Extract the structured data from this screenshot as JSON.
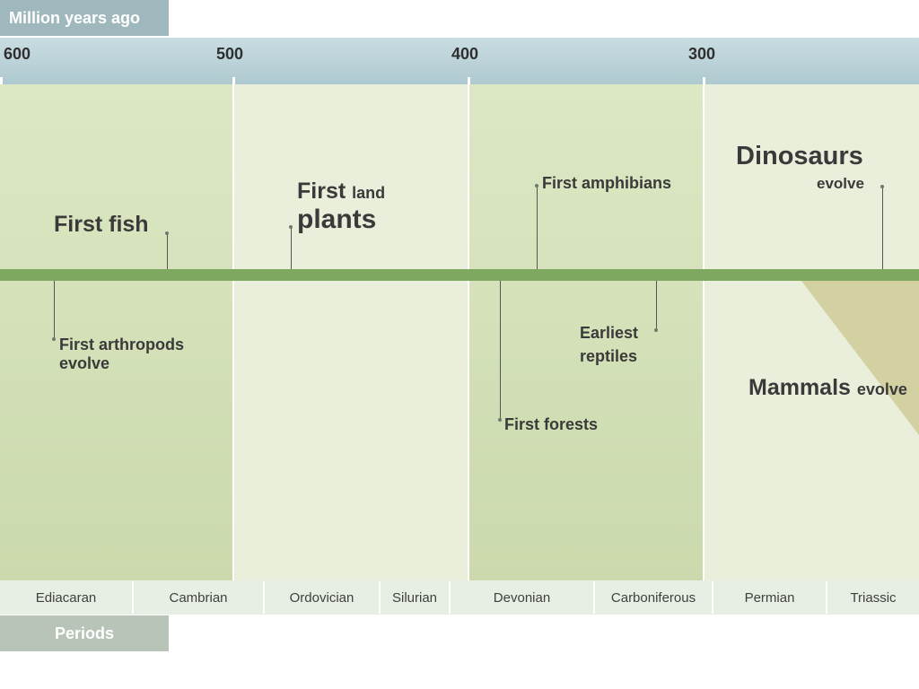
{
  "header": {
    "axis_title": "Million years ago"
  },
  "axis": {
    "ticks": [
      "600",
      "500",
      "400",
      "300"
    ]
  },
  "events": {
    "first_fish": "First fish",
    "first_land_a": "First",
    "first_land_b": "land",
    "first_land_c": "plants",
    "first_amphibians": "First amphibians",
    "dinosaurs_a": "Dinosaurs",
    "dinosaurs_b": "evolve",
    "first_arthropods_a": "First arthropods",
    "first_arthropods_b": "evolve",
    "earliest_reptiles_a": "Earliest",
    "earliest_reptiles_b": "reptiles",
    "first_forests": "First forests",
    "mammals_a": "Mammals",
    "mammals_b": "evolve"
  },
  "periods": {
    "title": "Periods",
    "items": [
      "Ediacaran",
      "Cambrian",
      "Ordovician",
      "Silurian",
      "Devonian",
      "Carboniferous",
      "Permian",
      "Triassic"
    ]
  },
  "colors": {
    "timeline": "#7ea85f",
    "band_dark": "#d4e1b9",
    "band_light": "#e9efdb",
    "axis_bar": "#b8d0d6"
  }
}
